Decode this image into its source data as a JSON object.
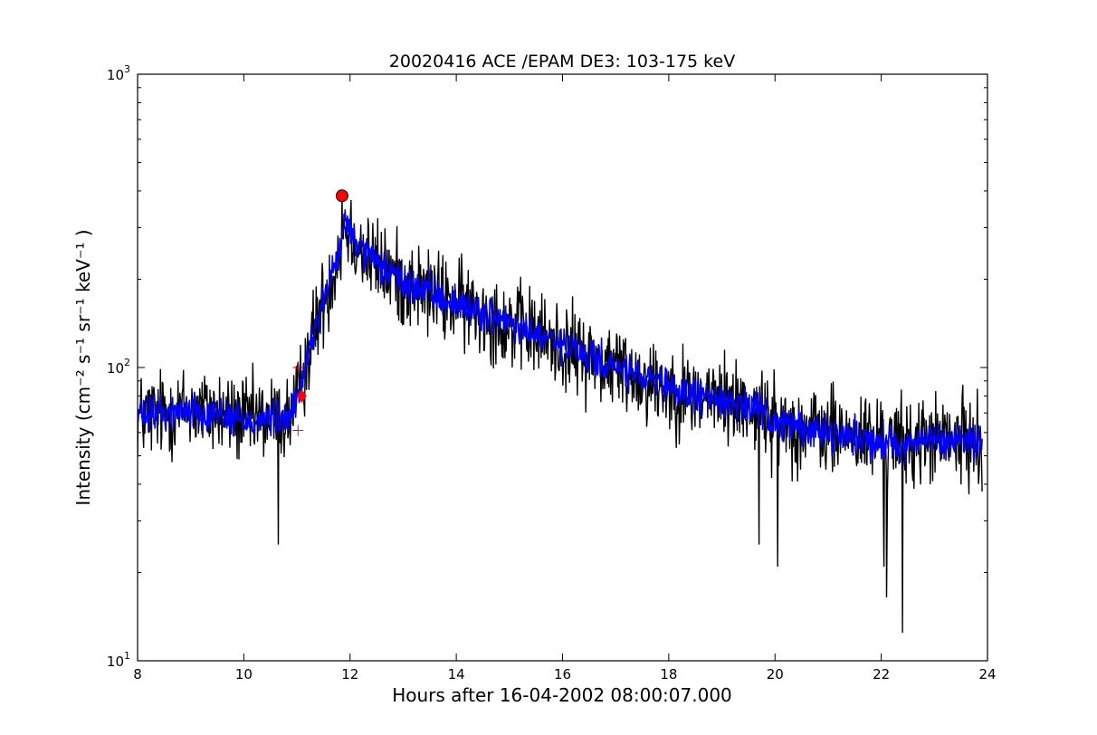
{
  "chart_data": {
    "type": "line",
    "title": "20020416 ACE /EPAM DE3: 103-175 keV",
    "xlabel": "Hours after 16-04-2002 08:00:07.000",
    "ylabel": "Intensity (cm⁻² s⁻¹ sr⁻¹ keV⁻¹ )",
    "xlim": [
      8,
      24
    ],
    "ylim": [
      10,
      1000
    ],
    "yscale": "log",
    "grid": false,
    "x_ticks": [
      8,
      10,
      12,
      14,
      16,
      18,
      20,
      22,
      24
    ],
    "x_tick_labels": [
      "8",
      "10",
      "12",
      "14",
      "16",
      "18",
      "20",
      "22",
      "24"
    ],
    "y_ticks": [
      10,
      100,
      1000
    ],
    "y_tick_labels": [
      {
        "base": "10",
        "exp": "1"
      },
      {
        "base": "10",
        "exp": "2"
      },
      {
        "base": "10",
        "exp": "3"
      }
    ],
    "series": [
      {
        "color": "#000000",
        "style": "raw intensity (noisy)",
        "x": [
          8.0,
          8.5,
          9.0,
          9.5,
          10.0,
          10.5,
          10.8,
          11.0,
          11.2,
          11.4,
          11.6,
          11.8,
          11.9,
          12.0,
          12.3,
          12.6,
          13.0,
          13.5,
          14.0,
          14.5,
          15.0,
          15.5,
          16.0,
          16.5,
          17.0,
          17.5,
          18.0,
          18.5,
          19.0,
          19.5,
          20.0,
          20.5,
          21.0,
          21.5,
          22.0,
          22.5,
          23.0,
          23.5,
          23.9
        ],
        "y": [
          68,
          70,
          72,
          70,
          66,
          67,
          66,
          75,
          110,
          150,
          190,
          250,
          310,
          290,
          240,
          220,
          195,
          180,
          165,
          155,
          140,
          130,
          118,
          108,
          100,
          92,
          85,
          80,
          78,
          74,
          66,
          62,
          60,
          58,
          56,
          55,
          57,
          56,
          56
        ],
        "noise": 0.45,
        "spikes": [
          {
            "x": 10.65,
            "y": 25
          },
          {
            "x": 11.85,
            "y": 380
          },
          {
            "x": 19.7,
            "y": 25
          },
          {
            "x": 20.05,
            "y": 21
          },
          {
            "x": 22.05,
            "y": 21
          },
          {
            "x": 22.1,
            "y": 16.5
          },
          {
            "x": 22.4,
            "y": 12.5
          }
        ]
      },
      {
        "color": "#0000ff",
        "style": "smoothed intensity",
        "x": [
          8.0,
          8.5,
          9.0,
          9.5,
          10.0,
          10.5,
          10.8,
          11.0,
          11.2,
          11.4,
          11.6,
          11.8,
          11.9,
          12.0,
          12.3,
          12.6,
          13.0,
          13.5,
          14.0,
          14.5,
          15.0,
          15.5,
          16.0,
          16.5,
          17.0,
          17.5,
          18.0,
          18.5,
          19.0,
          19.5,
          20.0,
          20.5,
          21.0,
          21.5,
          22.0,
          22.5,
          23.0,
          23.5,
          23.9
        ],
        "y": [
          68,
          70,
          72,
          70,
          66,
          67,
          66,
          75,
          110,
          150,
          190,
          250,
          310,
          290,
          240,
          220,
          195,
          180,
          165,
          155,
          140,
          130,
          118,
          108,
          100,
          92,
          85,
          80,
          78,
          74,
          66,
          62,
          60,
          58,
          56,
          55,
          57,
          56,
          56
        ],
        "noise": 0.18,
        "spikes": []
      }
    ],
    "markers": [
      {
        "shape": "circle",
        "x": 11.85,
        "y": 385,
        "color": "#ff0000"
      },
      {
        "shape": "diamond",
        "x": 11.09,
        "y": 80,
        "color": "#ff0000"
      },
      {
        "shape": "plus",
        "x": 11.02,
        "y": 100,
        "color": "#ff0000"
      },
      {
        "shape": "plus",
        "x": 11.02,
        "y": 61,
        "color": "#ff0000"
      }
    ]
  }
}
